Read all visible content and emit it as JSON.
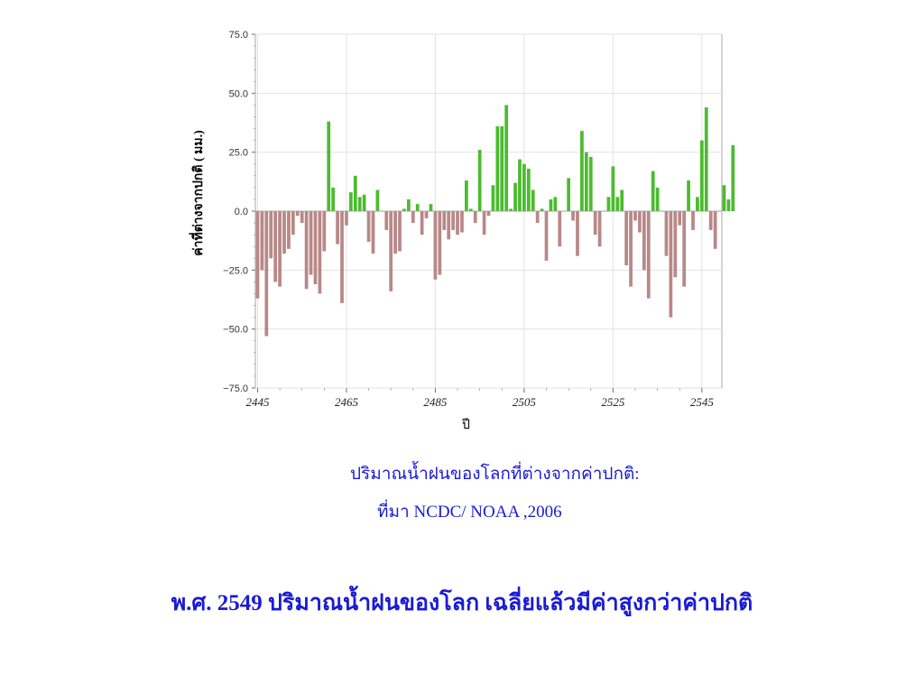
{
  "chart_data": {
    "type": "bar",
    "title": "",
    "ylabel": "ค่าที่ต่างจากปกติ ( มม.)",
    "xlabel": "ปี",
    "ylim": [
      -75,
      75
    ],
    "yticks": [
      75,
      50,
      25,
      0,
      -25,
      -50,
      -75
    ],
    "ytick_labels": [
      "75.0",
      "50.0",
      "25.0",
      "0.0",
      "−25.0",
      "−50.0",
      "−75.0"
    ],
    "xticks": [
      2445,
      2465,
      2485,
      2505,
      2525,
      2545
    ],
    "xtick_labels": [
      "2445",
      "2465",
      "2485",
      "2505",
      "2525",
      "2545"
    ],
    "x_start": 2445,
    "x_end": 2549,
    "values": [
      -37,
      -25,
      -53,
      -20,
      -30,
      -32,
      -18,
      -16,
      -10,
      -2,
      -5,
      -33,
      -27,
      -31,
      -35,
      -17,
      38,
      10,
      -14,
      -39,
      -6,
      8,
      15,
      6,
      7,
      -13,
      -18,
      9,
      0,
      -8,
      -34,
      -18,
      -17,
      1,
      5,
      -5,
      3,
      -10,
      -3,
      3,
      -29,
      -27,
      -8,
      -12,
      -8,
      -10,
      -9,
      13,
      1,
      -5,
      26,
      -10,
      -2,
      11,
      36,
      36,
      45,
      1,
      12,
      22,
      20,
      18,
      9,
      -5,
      1,
      -21,
      5,
      6,
      -15,
      0,
      14,
      -4,
      -19,
      34,
      25,
      23,
      -10,
      -15,
      0,
      6,
      19,
      6,
      9,
      -23,
      -32,
      -4,
      -9,
      -25,
      -37,
      17,
      10,
      0,
      -19,
      -45,
      -28,
      -6,
      -32,
      13,
      -8,
      6,
      30,
      44,
      -8,
      -16,
      0,
      11,
      5,
      28
    ],
    "colors": {
      "positive": "#4cbb30",
      "negative": "#b88888"
    },
    "grid": true
  },
  "caption": {
    "line1": "ปริมาณน้ำฝนของโลกที่ต่างจากค่าปกติ:",
    "line2": "ที่มา  NCDC/ NOAA ,2006"
  },
  "headline": "พ.ศ. 2549 ปริมาณน้ำฝนของโลก เฉลี่ยแล้วมีค่าสูงกว่าค่าปกติ"
}
